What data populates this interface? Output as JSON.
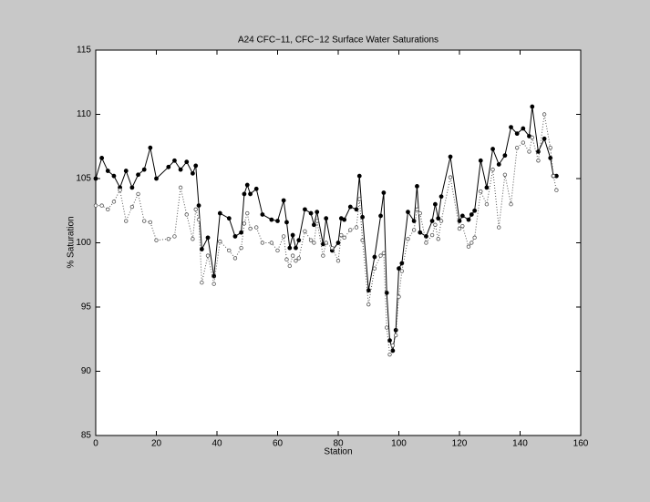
{
  "chart_data": {
    "type": "line",
    "title": "A24 CFC−11, CFC−12 Surface Water Saturations",
    "x_label": "Station",
    "y_label": "% Saturation",
    "x": [
      0,
      2,
      4,
      6,
      8,
      10,
      12,
      14,
      16,
      18,
      20,
      24,
      26,
      28,
      30,
      32,
      33,
      34,
      35,
      37,
      39,
      41,
      44,
      46,
      48,
      49,
      50,
      51,
      53,
      55,
      58,
      60,
      62,
      63,
      64,
      65,
      66,
      67,
      69,
      71,
      72,
      73,
      75,
      76,
      78,
      80,
      81,
      82,
      84,
      86,
      87,
      88,
      90,
      92,
      94,
      95,
      96,
      97,
      98,
      99,
      100,
      101,
      103,
      105,
      106,
      107,
      109,
      111,
      112,
      113,
      114,
      117,
      120,
      121,
      123,
      124,
      125,
      127,
      129,
      131,
      133,
      135,
      137,
      139,
      141,
      143,
      144,
      146,
      148,
      150,
      151,
      152
    ],
    "series": [
      {
        "color": "#000000",
        "line_style": "solid",
        "marker": "filled",
        "values": [
          105.0,
          106.6,
          105.6,
          105.2,
          104.3,
          105.6,
          104.3,
          105.3,
          105.7,
          107.4,
          105.0,
          105.9,
          106.4,
          105.7,
          106.3,
          105.4,
          106.0,
          102.9,
          99.5,
          100.4,
          97.4,
          102.3,
          101.9,
          100.5,
          100.8,
          103.8,
          104.5,
          103.8,
          104.2,
          102.2,
          101.8,
          101.7,
          103.3,
          101.6,
          99.6,
          100.6,
          99.6,
          100.2,
          102.6,
          102.3,
          101.4,
          102.4,
          99.9,
          101.9,
          99.4,
          100.0,
          101.9,
          101.8,
          102.8,
          102.6,
          105.2,
          102.0,
          96.3,
          98.9,
          102.1,
          103.9,
          96.1,
          92.4,
          91.6,
          93.2,
          98.0,
          98.4,
          102.4,
          101.7,
          104.4,
          100.8,
          100.5,
          101.7,
          103.0,
          101.9,
          103.6,
          106.7,
          101.7,
          102.1,
          101.8,
          102.2,
          102.5,
          106.4,
          104.3,
          107.3,
          106.1,
          106.8,
          109.0,
          108.5,
          108.9,
          108.3,
          110.6,
          107.1,
          108.1,
          106.6,
          105.2,
          105.2
        ]
      },
      {
        "color": "#555555",
        "line_style": "dotted",
        "marker": "open",
        "values": [
          102.9,
          102.9,
          102.6,
          103.2,
          104.1,
          101.7,
          102.8,
          103.8,
          101.7,
          101.6,
          100.2,
          100.3,
          100.5,
          104.3,
          102.2,
          100.3,
          102.6,
          101.8,
          96.9,
          99.0,
          96.8,
          100.1,
          99.4,
          98.8,
          99.6,
          101.5,
          102.3,
          101.1,
          101.2,
          100.0,
          100.0,
          99.4,
          100.5,
          98.7,
          98.2,
          99.0,
          98.6,
          98.8,
          100.9,
          100.2,
          100.0,
          101.7,
          99.0,
          100.0,
          99.6,
          98.6,
          100.6,
          100.4,
          101.0,
          101.2,
          103.4,
          100.2,
          95.2,
          98.0,
          99.0,
          99.2,
          93.4,
          91.3,
          92.0,
          92.8,
          95.8,
          97.8,
          100.3,
          101.0,
          102.6,
          102.3,
          100.0,
          100.6,
          101.4,
          100.3,
          101.7,
          105.1,
          101.1,
          101.3,
          99.7,
          100.0,
          100.4,
          104.0,
          103.0,
          105.7,
          101.2,
          105.3,
          103.0,
          107.4,
          107.8,
          107.1,
          108.2,
          106.4,
          110.0,
          107.4,
          105.2,
          104.1
        ]
      }
    ],
    "xlim": [
      0,
      160
    ],
    "xticks": [
      0,
      20,
      40,
      60,
      80,
      100,
      120,
      140,
      160
    ],
    "ylim": [
      85,
      115
    ],
    "yticks": [
      85,
      90,
      95,
      100,
      105,
      110,
      115
    ],
    "grid": false
  }
}
